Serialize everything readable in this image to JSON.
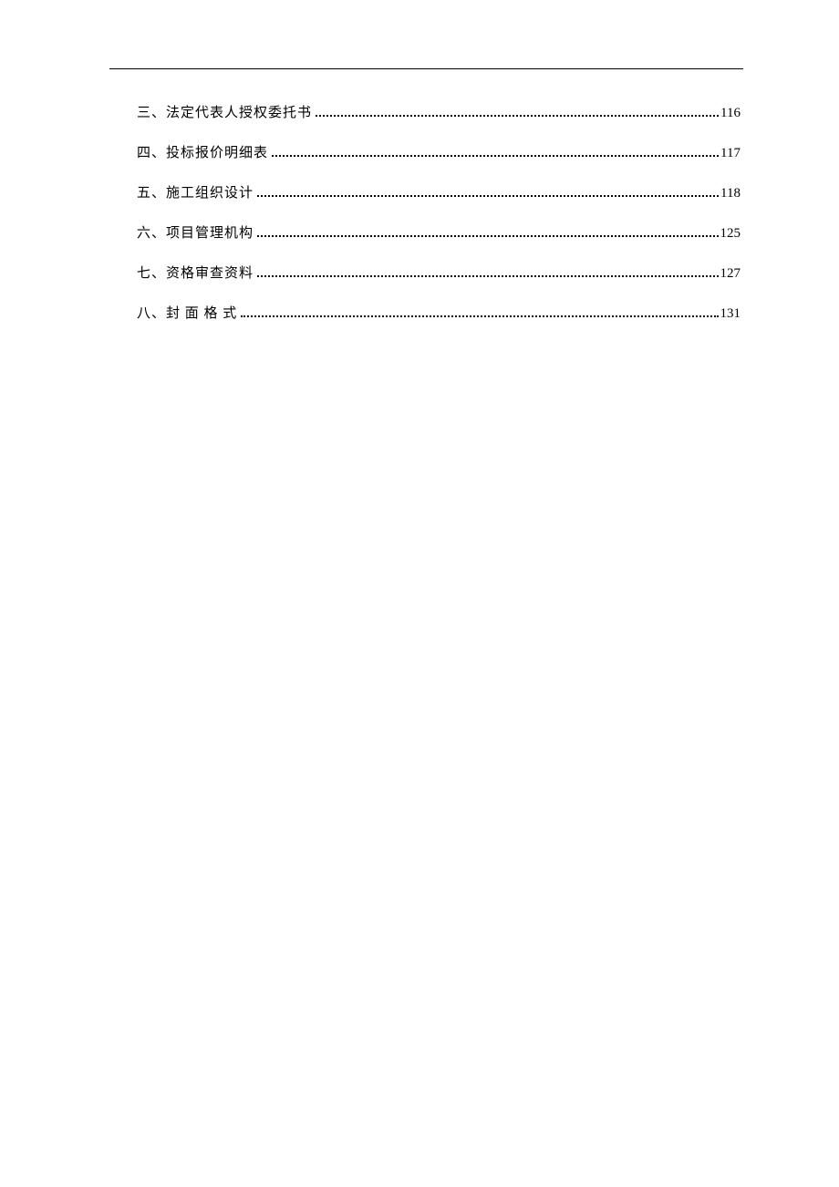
{
  "toc": {
    "entries": [
      {
        "label": "三、法定代表人授权委托书",
        "page": "116"
      },
      {
        "label": "四、投标报价明细表",
        "page": "117"
      },
      {
        "label": "五、施工组织设计",
        "page": "118"
      },
      {
        "label": "六、项目管理机构",
        "page": "125"
      },
      {
        "label": "七、资格审查资料",
        "page": "127"
      },
      {
        "label": "八、封 面 格 式",
        "page": "131"
      }
    ]
  },
  "colors": {
    "background": "#ffffff",
    "text": "#000000",
    "rule": "#000000"
  },
  "typography": {
    "font_family": "SimSun",
    "font_size_pt": 11
  }
}
